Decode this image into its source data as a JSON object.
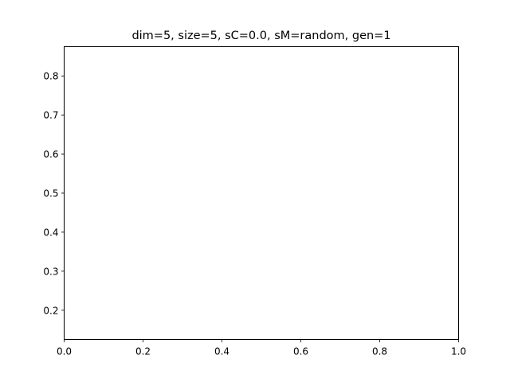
{
  "chart_data": {
    "type": "line",
    "title": "dim=5, size=5, sC=0.0, sM=random, gen=1",
    "xlabel": "",
    "ylabel": "",
    "xlim": [
      0.0,
      1.0
    ],
    "ylim": [
      0.125,
      0.875
    ],
    "x_ticks": [
      0.0,
      0.2,
      0.4,
      0.6,
      0.8,
      1.0
    ],
    "x_tick_labels": [
      "0.0",
      "0.2",
      "0.4",
      "0.6",
      "0.8",
      "1.0"
    ],
    "y_ticks": [
      0.2,
      0.3,
      0.4,
      0.5,
      0.6,
      0.7,
      0.8
    ],
    "y_tick_labels": [
      "0.2",
      "0.3",
      "0.4",
      "0.5",
      "0.6",
      "0.7",
      "0.8"
    ],
    "series": [],
    "grid": false,
    "legend": "none"
  }
}
